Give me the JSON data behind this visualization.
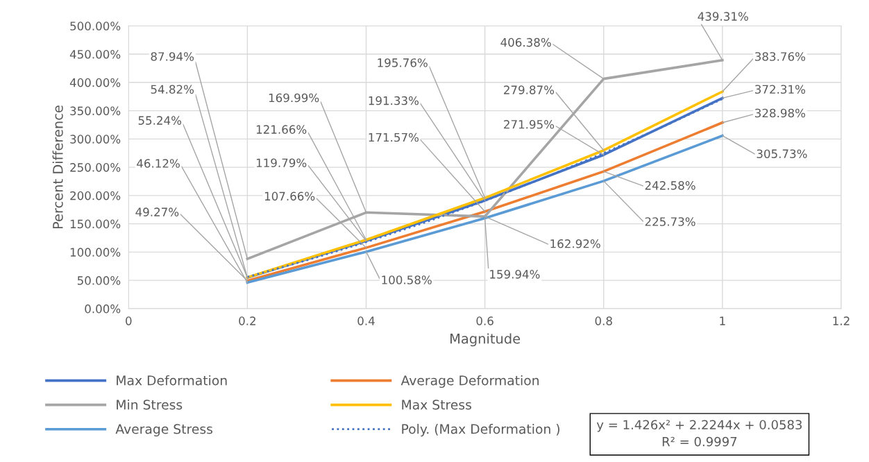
{
  "chart_data": {
    "type": "line",
    "xlabel": "Magnitude",
    "ylabel": "Percent Difference",
    "x": [
      0.2,
      0.4,
      0.6,
      0.8,
      1
    ],
    "series": [
      {
        "name": "Max Deformation",
        "color": "#4472c4",
        "values": [
          54.82,
          119.79,
          191.33,
          271.95,
          372.31
        ],
        "value_labels": [
          "54.82%",
          "119.79%",
          "191.33%",
          "271.95%",
          "372.31%"
        ]
      },
      {
        "name": "Average Deformation",
        "color": "#ed7d31",
        "values": [
          49.27,
          107.66,
          171.57,
          242.58,
          328.98
        ],
        "value_labels": [
          "49.27%",
          "107.66%",
          "171.57%",
          "242.58%",
          "328.98%"
        ]
      },
      {
        "name": "Min Stress",
        "color": "#a5a5a5",
        "values": [
          87.94,
          169.99,
          162.92,
          406.38,
          439.31
        ],
        "value_labels": [
          "87.94%",
          "169.99%",
          "162.92%",
          "406.38%",
          "439.31%"
        ]
      },
      {
        "name": "Max Stress",
        "color": "#ffc000",
        "values": [
          55.24,
          121.66,
          195.76,
          279.87,
          383.76
        ],
        "value_labels": [
          "55.24%",
          "121.66%",
          "195.76%",
          "279.87%",
          "383.76%"
        ]
      },
      {
        "name": "Average Stress",
        "color": "#5b9bd5",
        "values": [
          46.12,
          100.58,
          159.94,
          225.73,
          305.73
        ],
        "value_labels": [
          "46.12%",
          "100.58%",
          "159.94%",
          "225.73%",
          "305.73%"
        ]
      },
      {
        "name": "Poly. (Max Deformation )",
        "color": "#4472c4",
        "line_style": "dotted",
        "x": [
          0.2,
          0.3,
          0.4,
          0.5,
          0.6,
          0.7,
          0.8,
          0.9,
          1
        ],
        "values": [
          56.02,
          85.4,
          117.62,
          152.7,
          190.63,
          231.41,
          275.05,
          321.53,
          370.87
        ]
      }
    ],
    "xlim": [
      0,
      1.2
    ],
    "xticks": [
      0,
      0.2,
      0.4,
      0.6,
      0.8,
      1,
      1.2
    ],
    "ylim": [
      0,
      500
    ],
    "yticks": [
      {
        "value": 0,
        "label": "0.00%"
      },
      {
        "value": 50,
        "label": "50.00%"
      },
      {
        "value": 100,
        "label": "100.00%"
      },
      {
        "value": 150,
        "label": "150.00%"
      },
      {
        "value": 200,
        "label": "200.00%"
      },
      {
        "value": 250,
        "label": "250.00%"
      },
      {
        "value": 300,
        "label": "300.00%"
      },
      {
        "value": 350,
        "label": "350.00%"
      },
      {
        "value": 400,
        "label": "400.00%"
      },
      {
        "value": 450,
        "label": "450.00%"
      },
      {
        "value": 500,
        "label": "500.00%"
      }
    ],
    "grid": true,
    "legend": "bottom",
    "marker": "none",
    "line_style": "solid",
    "annotations": [
      "y = 1.426x² + 2.2244x + 0.0583\nR² = 0.9997"
    ]
  }
}
